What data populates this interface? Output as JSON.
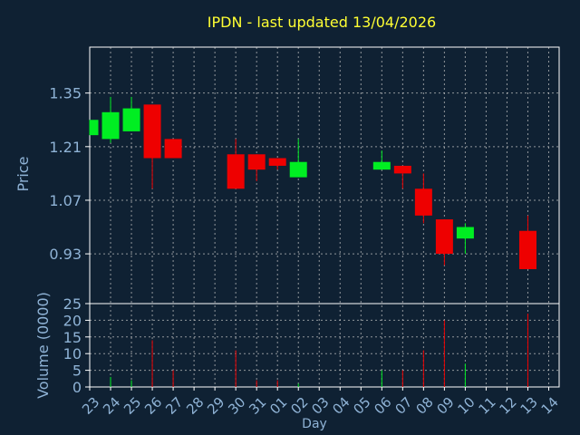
{
  "chart_data": {
    "type": "candlestick",
    "title": "IPDN - last updated 13/04/2026",
    "price_panel": {
      "ylabel": "Price",
      "yticks": [
        "1.35",
        "1.21",
        "1.07",
        "0.93"
      ],
      "ylim": [
        0.8,
        1.47
      ]
    },
    "volume_panel": {
      "ylabel": "Volume (0000)",
      "yticks": [
        "25",
        "20",
        "15",
        "10",
        "5",
        "0"
      ],
      "ylim": [
        0,
        25
      ]
    },
    "xlabel": "Day",
    "x_ticks": [
      "23",
      "24",
      "25",
      "26",
      "27",
      "28",
      "29",
      "30",
      "31",
      "01",
      "02",
      "03",
      "04",
      "05",
      "06",
      "07",
      "08",
      "09",
      "10",
      "11",
      "12",
      "13",
      "14"
    ],
    "candles": [
      {
        "x": 0,
        "open": 1.24,
        "close": 1.28,
        "high": 1.28,
        "low": 1.24,
        "volume": 0
      },
      {
        "x": 1,
        "open": 1.23,
        "close": 1.3,
        "high": 1.34,
        "low": 1.22,
        "volume": 3
      },
      {
        "x": 2,
        "open": 1.25,
        "close": 1.31,
        "high": 1.34,
        "low": 1.25,
        "volume": 2
      },
      {
        "x": 3,
        "open": 1.32,
        "close": 1.18,
        "high": 1.32,
        "low": 1.1,
        "volume": 14
      },
      {
        "x": 4,
        "open": 1.23,
        "close": 1.18,
        "high": 1.23,
        "low": 1.18,
        "volume": 5
      },
      {
        "x": 7,
        "open": 1.19,
        "close": 1.1,
        "high": 1.23,
        "low": 1.1,
        "volume": 11
      },
      {
        "x": 8,
        "open": 1.19,
        "close": 1.15,
        "high": 1.19,
        "low": 1.12,
        "volume": 2
      },
      {
        "x": 9,
        "open": 1.18,
        "close": 1.16,
        "high": 1.18,
        "low": 1.15,
        "volume": 2
      },
      {
        "x": 10,
        "open": 1.13,
        "close": 1.17,
        "high": 1.23,
        "low": 1.13,
        "volume": 1
      },
      {
        "x": 14,
        "open": 1.15,
        "close": 1.17,
        "high": 1.2,
        "low": 1.15,
        "volume": 5
      },
      {
        "x": 15,
        "open": 1.16,
        "close": 1.14,
        "high": 1.16,
        "low": 1.1,
        "volume": 5
      },
      {
        "x": 16,
        "open": 1.1,
        "close": 1.03,
        "high": 1.14,
        "low": 1.01,
        "volume": 11
      },
      {
        "x": 17,
        "open": 1.02,
        "close": 0.93,
        "high": 1.02,
        "low": 0.9,
        "volume": 20
      },
      {
        "x": 18,
        "open": 0.97,
        "close": 1.0,
        "high": 1.01,
        "low": 0.93,
        "volume": 7
      },
      {
        "x": 21,
        "open": 0.99,
        "close": 0.89,
        "high": 1.03,
        "low": 0.89,
        "volume": 22
      }
    ],
    "colors": {
      "background": "#0f2133",
      "up": "#00ee22",
      "down": "#ee0000",
      "grid": "#c8c8c8",
      "axis": "#ffffff",
      "label": "#8fb3d6",
      "title": "#ffff33"
    },
    "grid": true
  }
}
